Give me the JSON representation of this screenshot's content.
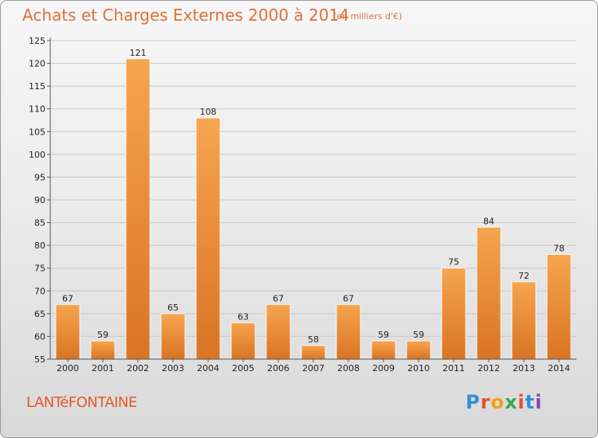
{
  "title": "Achats et Charges Externes 2000 à 2014",
  "subtitle": "(en milliers d'€)",
  "commune": "LANTéFONTAINE",
  "logo": {
    "text": "Proxiti",
    "colors": [
      "#2f8fd8",
      "#e84f2b",
      "#f0a21c",
      "#3aa84a",
      "#e84f2b",
      "#2f8fd8",
      "#8e44ad"
    ]
  },
  "colors": {
    "bar_top": "#f6a54f",
    "bar_bottom": "#d97423",
    "title": "#e0703a",
    "commune": "#e55a2b"
  },
  "chart_data": {
    "type": "bar",
    "categories": [
      "2000",
      "2001",
      "2002",
      "2003",
      "2004",
      "2005",
      "2006",
      "2007",
      "2008",
      "2009",
      "2010",
      "2011",
      "2012",
      "2013",
      "2014"
    ],
    "values": [
      67,
      59,
      121,
      65,
      108,
      63,
      67,
      58,
      67,
      59,
      59,
      75,
      84,
      72,
      78
    ],
    "yticks": [
      55,
      60,
      65,
      70,
      75,
      80,
      85,
      90,
      95,
      100,
      105,
      110,
      115,
      120,
      125
    ],
    "ylim": [
      55,
      125
    ],
    "grid": true,
    "show_data_labels": true
  }
}
